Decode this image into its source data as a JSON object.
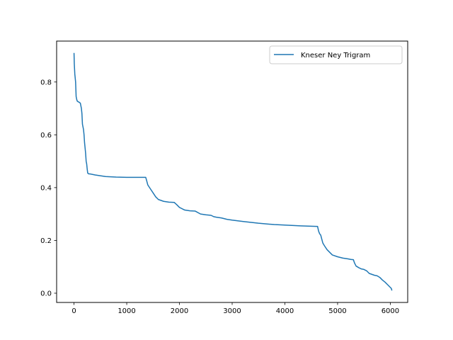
{
  "chart_data": {
    "type": "line",
    "title": "",
    "xlabel": "",
    "ylabel": "",
    "xlim": [
      -330,
      6330
    ],
    "ylim": [
      -0.035,
      0.955
    ],
    "xticks": [
      0,
      1000,
      2000,
      3000,
      4000,
      5000,
      6000
    ],
    "yticks": [
      0.0,
      0.2,
      0.4,
      0.6,
      0.8
    ],
    "xtick_labels": [
      "0",
      "1000",
      "2000",
      "3000",
      "4000",
      "5000",
      "6000"
    ],
    "ytick_labels": [
      "0.0",
      "0.2",
      "0.4",
      "0.6",
      "0.8"
    ],
    "legend_position": "top-right",
    "series": [
      {
        "name": "Kneser Ney Trigram",
        "color": "#1f77b4",
        "x": [
          0,
          5,
          10,
          15,
          20,
          25,
          30,
          40,
          50,
          60,
          80,
          100,
          120,
          140,
          150,
          160,
          170,
          180,
          190,
          200,
          210,
          220,
          230,
          240,
          250,
          260,
          280,
          300,
          400,
          500,
          600,
          800,
          1000,
          1200,
          1360,
          1380,
          1400,
          1450,
          1500,
          1550,
          1600,
          1700,
          1800,
          1900,
          1950,
          2000,
          2100,
          2200,
          2300,
          2400,
          2500,
          2600,
          2650,
          2700,
          2800,
          2900,
          3000,
          3200,
          3500,
          3800,
          4000,
          4300,
          4600,
          4620,
          4640,
          4660,
          4680,
          4700,
          4720,
          4750,
          4800,
          4850,
          4900,
          5000,
          5100,
          5200,
          5250,
          5300,
          5320,
          5350,
          5400,
          5450,
          5500,
          5550,
          5600,
          5700,
          5750,
          5800,
          5850,
          5900,
          5950,
          6000,
          6020,
          6030
        ],
        "y": [
          0.91,
          0.87,
          0.85,
          0.83,
          0.82,
          0.81,
          0.8,
          0.745,
          0.735,
          0.728,
          0.725,
          0.723,
          0.72,
          0.7,
          0.68,
          0.64,
          0.63,
          0.62,
          0.6,
          0.57,
          0.55,
          0.53,
          0.5,
          0.49,
          0.47,
          0.455,
          0.452,
          0.452,
          0.448,
          0.445,
          0.442,
          0.44,
          0.439,
          0.439,
          0.439,
          0.425,
          0.41,
          0.395,
          0.38,
          0.365,
          0.355,
          0.348,
          0.345,
          0.344,
          0.335,
          0.325,
          0.315,
          0.312,
          0.311,
          0.3,
          0.297,
          0.295,
          0.29,
          0.288,
          0.285,
          0.28,
          0.277,
          0.272,
          0.265,
          0.26,
          0.258,
          0.255,
          0.253,
          0.253,
          0.235,
          0.225,
          0.22,
          0.205,
          0.19,
          0.18,
          0.165,
          0.155,
          0.145,
          0.138,
          0.133,
          0.13,
          0.128,
          0.127,
          0.115,
          0.103,
          0.097,
          0.092,
          0.09,
          0.085,
          0.075,
          0.068,
          0.066,
          0.06,
          0.05,
          0.042,
          0.032,
          0.022,
          0.018,
          0.01
        ]
      }
    ]
  }
}
